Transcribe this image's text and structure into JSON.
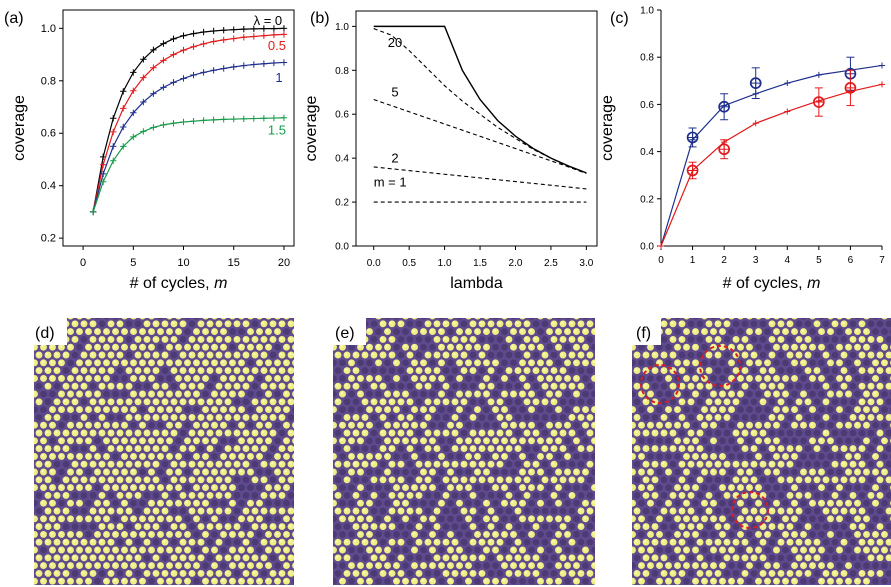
{
  "panels": {
    "a": "(a)",
    "b": "(b)",
    "c": "(c)",
    "d": "(d)",
    "e": "(e)",
    "f": "(f)"
  },
  "colors": {
    "black": "#000000",
    "red": "#e31a1c",
    "blue": "#1f2f8c",
    "green": "#169c4a",
    "purple": "#5e4a8c",
    "purple_dark": "#3e2f61",
    "yellow": "#f0ef86",
    "yellow_highlight": "#ffffc7",
    "circle": "#d71d2b"
  },
  "chart_data": [
    {
      "id": "a",
      "type": "line",
      "xlabel": "# of cycles, ",
      "xlabel_italic": "m",
      "ylabel": "coverage",
      "xlim": [
        -2,
        21
      ],
      "ylim": [
        0.17,
        1.07
      ],
      "xticks": [
        0,
        5,
        10,
        15,
        20
      ],
      "yticks": [
        0.2,
        0.4,
        0.6,
        0.8,
        1.0
      ],
      "ytick_labels": [
        "0.2",
        "0.4",
        "0.6",
        "0.8",
        "1.0"
      ],
      "series": [
        {
          "name": "λ = 0",
          "color": "black",
          "x": [
            1,
            2,
            3,
            4,
            5,
            6,
            7,
            8,
            9,
            10,
            11,
            12,
            13,
            14,
            15,
            16,
            17,
            18,
            19,
            20
          ],
          "values": [
            0.3,
            0.51,
            0.657,
            0.76,
            0.832,
            0.882,
            0.918,
            0.942,
            0.96,
            0.972,
            0.98,
            0.986,
            0.99,
            0.993,
            0.995,
            0.997,
            0.998,
            0.999,
            0.999,
            1.0
          ],
          "label_x": 18.4,
          "label_y": 1.012
        },
        {
          "name": "0.5",
          "color": "red",
          "x": [
            1,
            2,
            3,
            4,
            5,
            6,
            7,
            8,
            9,
            10,
            11,
            12,
            13,
            14,
            15,
            16,
            17,
            18,
            19,
            20
          ],
          "values": [
            0.3,
            0.48,
            0.605,
            0.695,
            0.762,
            0.812,
            0.85,
            0.878,
            0.9,
            0.917,
            0.93,
            0.941,
            0.95,
            0.956,
            0.961,
            0.966,
            0.969,
            0.972,
            0.975,
            0.977
          ],
          "label_x": 19.3,
          "label_y": 0.918
        },
        {
          "name": "1",
          "color": "blue",
          "x": [
            1,
            2,
            3,
            4,
            5,
            6,
            7,
            8,
            9,
            10,
            11,
            12,
            13,
            14,
            15,
            16,
            17,
            18,
            19,
            20
          ],
          "values": [
            0.3,
            0.445,
            0.55,
            0.624,
            0.678,
            0.719,
            0.751,
            0.775,
            0.794,
            0.809,
            0.822,
            0.832,
            0.84,
            0.847,
            0.853,
            0.858,
            0.862,
            0.865,
            0.868,
            0.87
          ],
          "label_x": 19.5,
          "label_y": 0.795
        },
        {
          "name": "1.5",
          "color": "green",
          "x": [
            1,
            2,
            3,
            4,
            5,
            6,
            7,
            8,
            9,
            10,
            11,
            12,
            13,
            14,
            15,
            16,
            17,
            18,
            19,
            20
          ],
          "values": [
            0.3,
            0.415,
            0.495,
            0.55,
            0.586,
            0.607,
            0.622,
            0.632,
            0.638,
            0.643,
            0.646,
            0.649,
            0.651,
            0.653,
            0.654,
            0.655,
            0.656,
            0.657,
            0.658,
            0.659
          ],
          "label_x": 19.3,
          "label_y": 0.595
        }
      ]
    },
    {
      "id": "b",
      "type": "line",
      "xlabel": "lambda",
      "ylabel": "coverage",
      "xlim": [
        -0.25,
        3.15
      ],
      "ylim": [
        0,
        1.07
      ],
      "xticks": [
        0.0,
        0.5,
        1.0,
        1.5,
        2.0,
        2.5,
        3.0
      ],
      "xtick_labels": [
        "0.0",
        "0.5",
        "1.0",
        "1.5",
        "2.0",
        "2.5",
        "3.0"
      ],
      "yticks": [
        0.0,
        0.2,
        0.4,
        0.6,
        0.8,
        1.0
      ],
      "ytick_labels": [
        "0.0",
        "0.2",
        "0.4",
        "0.6",
        "0.8",
        "1.0"
      ],
      "series": [
        {
          "name": "",
          "style": "solid",
          "x": [
            0.0,
            1.0,
            1.25,
            1.5,
            1.75,
            2.0,
            2.25,
            2.5,
            2.75,
            3.0
          ],
          "values": [
            1.0,
            1.0,
            0.8,
            0.667,
            0.571,
            0.5,
            0.444,
            0.4,
            0.364,
            0.333
          ]
        },
        {
          "name": "20",
          "style": "dashed",
          "x": [
            0.0,
            0.25,
            0.5,
            0.75,
            1.0,
            1.25,
            1.5,
            1.75,
            2.0,
            2.25,
            2.5,
            2.75,
            3.0
          ],
          "values": [
            0.99,
            0.96,
            0.89,
            0.81,
            0.73,
            0.66,
            0.6,
            0.54,
            0.49,
            0.44,
            0.4,
            0.36,
            0.33
          ],
          "label_x": 0.3,
          "label_y": 0.905
        },
        {
          "name": "5",
          "style": "dashed",
          "x": [
            0.0,
            3.0
          ],
          "values": [
            0.667,
            0.332
          ],
          "label_x": 0.3,
          "label_y": 0.68
        },
        {
          "name": "2",
          "style": "dashed",
          "x": [
            0.0,
            3.0
          ],
          "values": [
            0.36,
            0.26
          ],
          "label_x": 0.3,
          "label_y": 0.38
        },
        {
          "name": "m = 1",
          "style": "dashed",
          "x": [
            0.0,
            3.0
          ],
          "values": [
            0.2,
            0.2
          ],
          "label_x": 0.0,
          "label_y": 0.27
        }
      ]
    },
    {
      "id": "c",
      "type": "line",
      "xlabel": "# of cycles, ",
      "xlabel_italic": "m",
      "ylabel": "coverage",
      "xlim": [
        0,
        7
      ],
      "ylim": [
        0,
        1.0
      ],
      "xticks": [
        0,
        1,
        2,
        3,
        4,
        5,
        6,
        7
      ],
      "yticks": [
        0.0,
        0.2,
        0.4,
        0.6,
        0.8,
        1.0
      ],
      "ytick_labels": [
        "0.0",
        "0.2",
        "0.4",
        "0.6",
        "0.8",
        "1.0"
      ],
      "series": [
        {
          "name": "",
          "kind": "model",
          "color": "blue",
          "x": [
            0,
            1,
            2,
            3,
            4,
            5,
            6,
            7
          ],
          "values": [
            0.0,
            0.45,
            0.595,
            0.645,
            0.69,
            0.725,
            0.745,
            0.765
          ]
        },
        {
          "name": "",
          "kind": "model",
          "color": "red",
          "x": [
            0,
            1,
            2,
            3,
            4,
            5,
            6,
            7
          ],
          "values": [
            0.0,
            0.32,
            0.44,
            0.52,
            0.57,
            0.615,
            0.655,
            0.685
          ]
        },
        {
          "name": "",
          "kind": "measured",
          "color": "blue",
          "x": [
            1,
            2,
            3,
            6
          ],
          "values": [
            0.46,
            0.59,
            0.69,
            0.73
          ],
          "errors": [
            0.04,
            0.055,
            0.065,
            0.07
          ]
        },
        {
          "name": "",
          "kind": "measured",
          "color": "red",
          "x": [
            1,
            2,
            5,
            6
          ],
          "values": [
            0.32,
            0.41,
            0.61,
            0.67
          ],
          "errors": [
            0.035,
            0.04,
            0.06,
            0.075
          ]
        }
      ]
    }
  ]
}
